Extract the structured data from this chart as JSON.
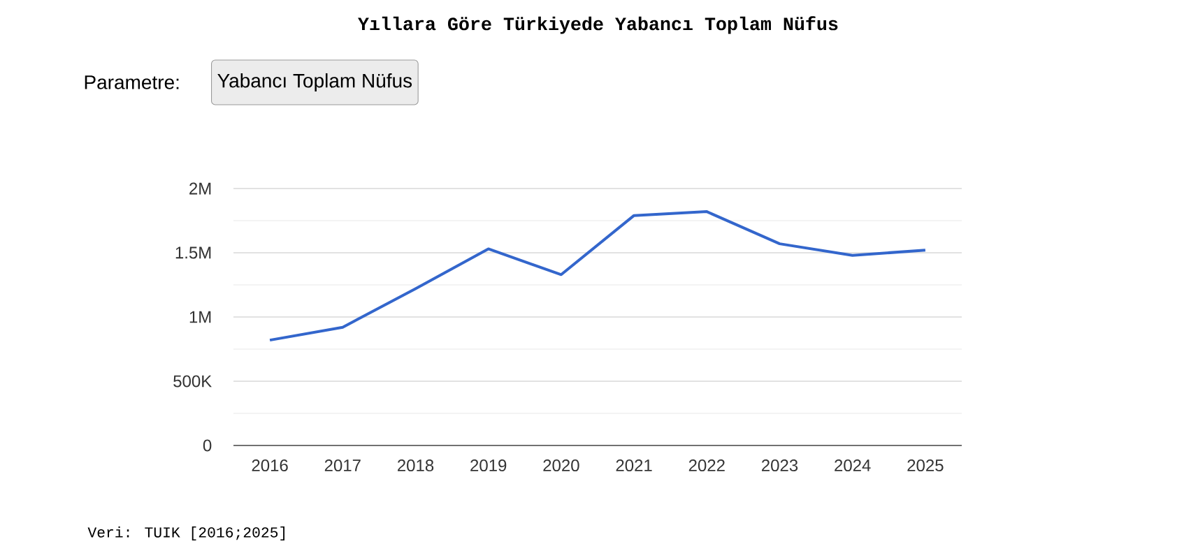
{
  "chart_data": {
    "type": "line",
    "title": "Yıllara Göre Türkiyede Yabancı Toplam Nüfus",
    "categories": [
      "2016",
      "2017",
      "2018",
      "2019",
      "2020",
      "2021",
      "2022",
      "2023",
      "2024",
      "2025"
    ],
    "series": [
      {
        "color": "#3366cc",
        "values": [
          820000,
          920000,
          1220000,
          1530000,
          1330000,
          1790000,
          1820000,
          1570000,
          1480000,
          1520000
        ]
      }
    ],
    "ylim": [
      0,
      2000000
    ],
    "yticks": [
      {
        "value": 0,
        "label": "0"
      },
      {
        "value": 250000,
        "label": null
      },
      {
        "value": 500000,
        "label": "500K"
      },
      {
        "value": 750000,
        "label": null
      },
      {
        "value": 1000000,
        "label": "1M"
      },
      {
        "value": 1250000,
        "label": null
      },
      {
        "value": 1500000,
        "label": "1.5M"
      },
      {
        "value": 1750000,
        "label": null
      },
      {
        "value": 2000000,
        "label": "2M"
      }
    ],
    "grid": "y",
    "marker": "none",
    "line_style": "solid",
    "annotations": [
      "Parametre:",
      "Yabancı Toplam Nüfus",
      "Veri: TUIK [2016;2025]"
    ]
  }
}
